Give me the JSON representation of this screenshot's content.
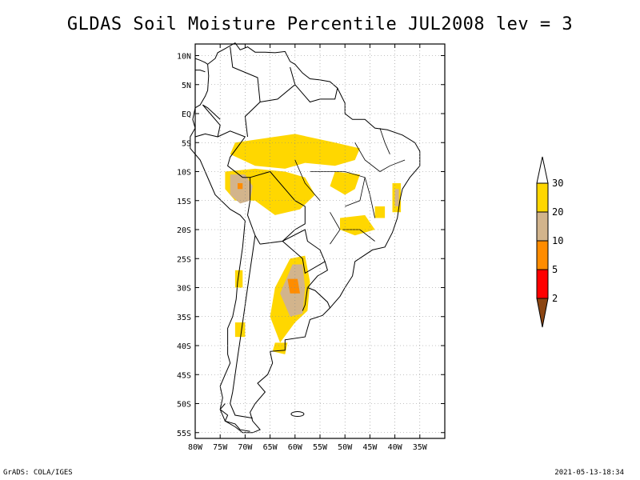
{
  "title": "GLDAS Soil Moisture Percentile JUL2008 lev = 3",
  "footer_left": "GrADS: COLA/IGES",
  "footer_right": "2021-05-13-18:34",
  "map": {
    "lon_range": [
      -80,
      -30
    ],
    "lat_range": [
      -56,
      12
    ],
    "lat_ticks": [
      {
        "value": 10,
        "label": "10N"
      },
      {
        "value": 5,
        "label": "5N"
      },
      {
        "value": 0,
        "label": "EQ"
      },
      {
        "value": -5,
        "label": "5S"
      },
      {
        "value": -10,
        "label": "10S"
      },
      {
        "value": -15,
        "label": "15S"
      },
      {
        "value": -20,
        "label": "20S"
      },
      {
        "value": -25,
        "label": "25S"
      },
      {
        "value": -30,
        "label": "30S"
      },
      {
        "value": -35,
        "label": "35S"
      },
      {
        "value": -40,
        "label": "40S"
      },
      {
        "value": -45,
        "label": "45S"
      },
      {
        "value": -50,
        "label": "50S"
      },
      {
        "value": -55,
        "label": "55S"
      }
    ],
    "lon_ticks": [
      {
        "value": -80,
        "label": "80W"
      },
      {
        "value": -75,
        "label": "75W"
      },
      {
        "value": -70,
        "label": "70W"
      },
      {
        "value": -65,
        "label": "65W"
      },
      {
        "value": -60,
        "label": "60W"
      },
      {
        "value": -55,
        "label": "55W"
      },
      {
        "value": -50,
        "label": "50W"
      },
      {
        "value": -45,
        "label": "45W"
      },
      {
        "value": -40,
        "label": "40W"
      },
      {
        "value": -35,
        "label": "35W"
      }
    ],
    "grid": true
  },
  "colorbar": {
    "classes": [
      {
        "range": "<2",
        "color": "#8b4513"
      },
      {
        "range": "2-5",
        "color": "#ff0000"
      },
      {
        "range": "5-10",
        "color": "#ff8c00"
      },
      {
        "range": "10-20",
        "color": "#d2b48c"
      },
      {
        "range": "20-30",
        "color": "#ffd700"
      },
      {
        "range": ">30",
        "color": "#ffffff"
      }
    ],
    "labels": [
      "2",
      "5",
      "10",
      "20",
      "30"
    ]
  },
  "regions": [
    {
      "name": "amazon-dry-band",
      "class": "20-30",
      "color": "#ffd700",
      "polygon": [
        [
          -68,
          -4.5
        ],
        [
          -60,
          -3.5
        ],
        [
          -52,
          -5
        ],
        [
          -47,
          -6
        ],
        [
          -48,
          -8
        ],
        [
          -52,
          -9
        ],
        [
          -58,
          -8.5
        ],
        [
          -62,
          -9.5
        ],
        [
          -68,
          -9
        ],
        [
          -73,
          -7
        ],
        [
          -72,
          -5
        ]
      ]
    },
    {
      "name": "bolivia-peru-dry",
      "class": "20-30",
      "color": "#ffd700",
      "polygon": [
        [
          -74,
          -10
        ],
        [
          -68,
          -9.5
        ],
        [
          -62,
          -10
        ],
        [
          -58,
          -11
        ],
        [
          -56,
          -14
        ],
        [
          -59,
          -16.5
        ],
        [
          -64,
          -17.5
        ],
        [
          -68,
          -15
        ],
        [
          -72,
          -15
        ],
        [
          -74,
          -13
        ]
      ]
    },
    {
      "name": "bolivia-core",
      "class": "10-20",
      "color": "#d2b48c",
      "polygon": [
        [
          -73,
          -10.5
        ],
        [
          -70,
          -10.5
        ],
        [
          -68.5,
          -12.5
        ],
        [
          -69,
          -15
        ],
        [
          -71,
          -15.5
        ],
        [
          -73,
          -14
        ]
      ]
    },
    {
      "name": "bolivia-core-orange",
      "class": "5-10",
      "color": "#ff8c00",
      "polygon": [
        [
          -71.5,
          -12
        ],
        [
          -70.5,
          -12
        ],
        [
          -70.5,
          -13
        ],
        [
          -71.5,
          -13
        ]
      ]
    },
    {
      "name": "central-brazil",
      "class": "20-30",
      "color": "#ffd700",
      "polygon": [
        [
          -52,
          -10
        ],
        [
          -47,
          -10.5
        ],
        [
          -48,
          -13
        ],
        [
          -50,
          -14
        ],
        [
          -53,
          -12.5
        ]
      ]
    },
    {
      "name": "minas-dry",
      "class": "20-30",
      "color": "#ffd700",
      "polygon": [
        [
          -51,
          -18
        ],
        [
          -46,
          -17.5
        ],
        [
          -44,
          -20
        ],
        [
          -48,
          -21
        ],
        [
          -51,
          -20
        ]
      ]
    },
    {
      "name": "bahia-coast",
      "class": "20-30",
      "color": "#ffd700",
      "polygon": [
        [
          -40.5,
          -12
        ],
        [
          -38.8,
          -12
        ],
        [
          -38.8,
          -17
        ],
        [
          -40.5,
          -17
        ]
      ]
    },
    {
      "name": "bahia-coast-core",
      "class": "10-20",
      "color": "#d2b48c",
      "polygon": [
        [
          -40,
          -13
        ],
        [
          -39.2,
          -13
        ],
        [
          -39.2,
          -16
        ],
        [
          -40,
          -16
        ]
      ]
    },
    {
      "name": "argentina-pampa",
      "class": "20-30",
      "color": "#ffd700",
      "polygon": [
        [
          -61,
          -25
        ],
        [
          -58,
          -24.5
        ],
        [
          -57,
          -29
        ],
        [
          -57.5,
          -34
        ],
        [
          -60,
          -36
        ],
        [
          -63,
          -39.5
        ],
        [
          -65,
          -35
        ],
        [
          -64,
          -30
        ]
      ]
    },
    {
      "name": "argentina-core",
      "class": "10-20",
      "color": "#d2b48c",
      "polygon": [
        [
          -60.5,
          -26
        ],
        [
          -58.5,
          -26
        ],
        [
          -58,
          -30
        ],
        [
          -58.5,
          -34.5
        ],
        [
          -61,
          -35
        ],
        [
          -63,
          -31
        ]
      ]
    },
    {
      "name": "argentina-orange",
      "class": "5-10",
      "color": "#ff8c00",
      "polygon": [
        [
          -61.5,
          -28.5
        ],
        [
          -59.5,
          -28.5
        ],
        [
          -59,
          -31
        ],
        [
          -61,
          -31
        ]
      ]
    },
    {
      "name": "patagonia-spot",
      "class": "20-30",
      "color": "#ffd700",
      "polygon": [
        [
          -64,
          -39.5
        ],
        [
          -61.5,
          -39.5
        ],
        [
          -62,
          -41.5
        ],
        [
          -64.5,
          -41
        ]
      ]
    },
    {
      "name": "chile-central",
      "class": "20-30",
      "color": "#ffd700",
      "polygon": [
        [
          -72,
          -27
        ],
        [
          -70.5,
          -27
        ],
        [
          -70.5,
          -30
        ],
        [
          -72,
          -30
        ]
      ]
    },
    {
      "name": "patagonia-west",
      "class": "20-30",
      "color": "#ffd700",
      "polygon": [
        [
          -72,
          -36
        ],
        [
          -70,
          -36
        ],
        [
          -70,
          -38.5
        ],
        [
          -72,
          -38.5
        ]
      ]
    },
    {
      "name": "ne-brazil-spot",
      "class": "20-30",
      "color": "#ffd700",
      "polygon": [
        [
          -44,
          -16
        ],
        [
          -42,
          -16
        ],
        [
          -42,
          -18
        ],
        [
          -44,
          -18
        ]
      ]
    }
  ]
}
